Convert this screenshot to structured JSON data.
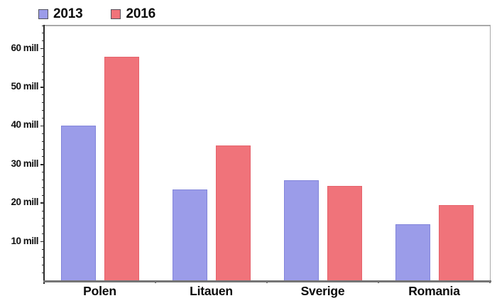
{
  "chart_data": {
    "type": "bar",
    "title": "",
    "categories": [
      "Polen",
      "Litauen",
      "Sverige",
      "Romania"
    ],
    "series": [
      {
        "name": "2013",
        "color": "#9b9ce9",
        "border_color": "#8285da",
        "values": [
          40,
          23.5,
          26,
          14.5
        ]
      },
      {
        "name": "2016",
        "color": "#f0737a",
        "border_color": "#e5626b",
        "values": [
          58,
          35,
          24.5,
          19.5
        ]
      }
    ],
    "xlabel": "",
    "ylabel": "",
    "yticks": [
      {
        "value": 10,
        "label": "10 mill"
      },
      {
        "value": 20,
        "label": "20 mill"
      },
      {
        "value": 30,
        "label": "30 mill"
      },
      {
        "value": 40,
        "label": "40 mill"
      },
      {
        "value": 50,
        "label": "50 mill"
      },
      {
        "value": 60,
        "label": "60 mill"
      }
    ],
    "minor_tick_step": 2,
    "ylim": [
      0,
      66.2
    ],
    "grid": false,
    "legend_position": "top-left",
    "legend_swatch_border": "#54545e",
    "axis_color": "#2a2a2a",
    "baseline_color": "#757575",
    "frame_color": "#a9a9a9",
    "text_color": "#0b0b0b"
  },
  "legend": {
    "items": [
      {
        "label": "2013",
        "color": "#9b9ce9"
      },
      {
        "label": "2016",
        "color": "#f0737a"
      }
    ]
  }
}
